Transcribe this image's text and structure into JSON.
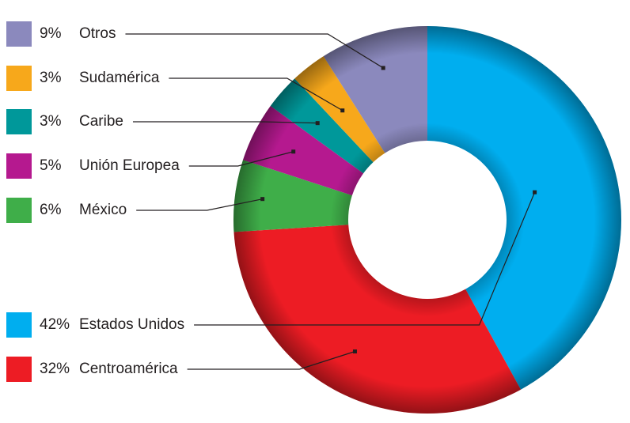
{
  "chart_data": {
    "type": "donut",
    "categories": [
      "Estados Unidos",
      "Centroamérica",
      "México",
      "Unión Europea",
      "Caribe",
      "Sudamérica",
      "Otros"
    ],
    "values": [
      42,
      32,
      6,
      5,
      3,
      3,
      9
    ],
    "value_labels": [
      "42%",
      "32%",
      "6%",
      "5%",
      "3%",
      "3%",
      "9%"
    ],
    "colors": [
      "#00aeef",
      "#ed1c24",
      "#3fae49",
      "#b5198f",
      "#00989a",
      "#f7a81b",
      "#8b89bd"
    ]
  }
}
